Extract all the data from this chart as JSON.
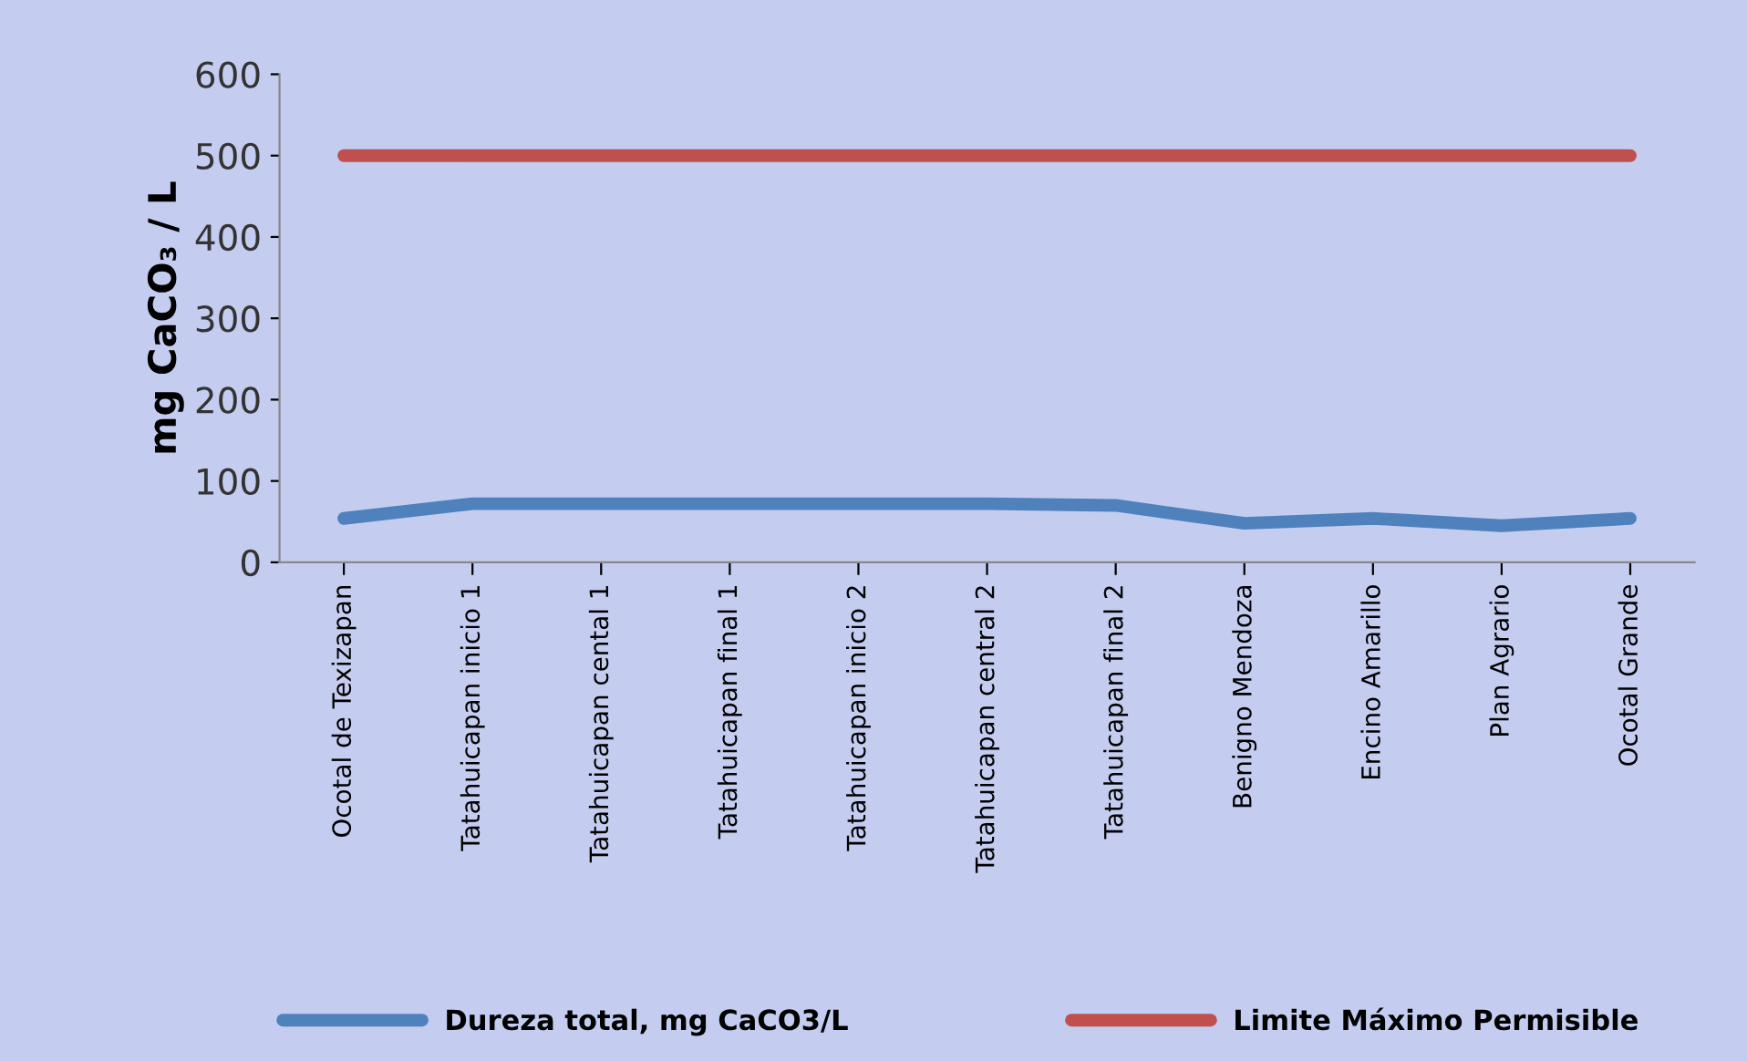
{
  "chart_data": {
    "type": "line",
    "ylabel": "mg CaCO₃ / L",
    "categories": [
      "Ocotal de Texizapan",
      "Tatahuicapan inicio 1",
      "Tatahuicapan cental 1",
      "Tatahuicapan final 1",
      "Tatahuicapan inicio 2",
      "Tatahuicapan central 2",
      "Tatahuicapan final 2",
      "Benigno Mendoza",
      "Encino Amarillo",
      "Plan Agrario",
      "Ocotal Grande"
    ],
    "series": [
      {
        "name": "Dureza total, mg CaCO3/L",
        "color": "#4f81bd",
        "values": [
          54,
          72,
          72,
          72,
          72,
          72,
          70,
          48,
          54,
          45,
          54
        ]
      },
      {
        "name": "Limite Máximo Permisible",
        "color": "#c0504d",
        "values": [
          500,
          500,
          500,
          500,
          500,
          500,
          500,
          500,
          500,
          500,
          500
        ]
      }
    ],
    "ylim": [
      0,
      600
    ],
    "yticks": [
      0,
      100,
      200,
      300,
      400,
      500,
      600
    ],
    "grid": false,
    "legend": "bottom",
    "marker": "none",
    "line_style": "solid"
  }
}
